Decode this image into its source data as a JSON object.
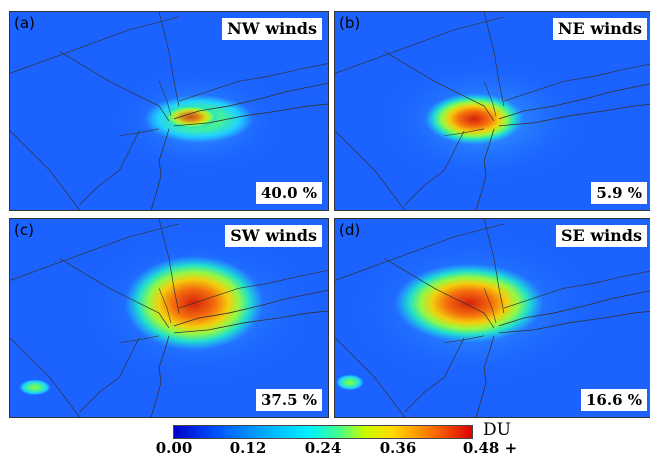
{
  "panels": [
    {
      "letter": "(a)",
      "title": "NW winds",
      "percent": "40.0 %"
    },
    {
      "letter": "(b)",
      "title": "NE winds",
      "percent": "5.9 %"
    },
    {
      "letter": "(c)",
      "title": "SW winds",
      "percent": "37.5 %"
    },
    {
      "letter": "(d)",
      "title": "SE winds",
      "percent": "16.6 %"
    }
  ],
  "colorbar": {
    "unit": "DU",
    "ticks": [
      "0.00",
      "0.12",
      "0.24",
      "0.36",
      "0.48 +"
    ],
    "colors": [
      "#0000c8",
      "#0050ff",
      "#00b4ff",
      "#00f0ff",
      "#40ff90",
      "#c8ff00",
      "#ffdc00",
      "#ff7800",
      "#dc0000"
    ]
  }
}
